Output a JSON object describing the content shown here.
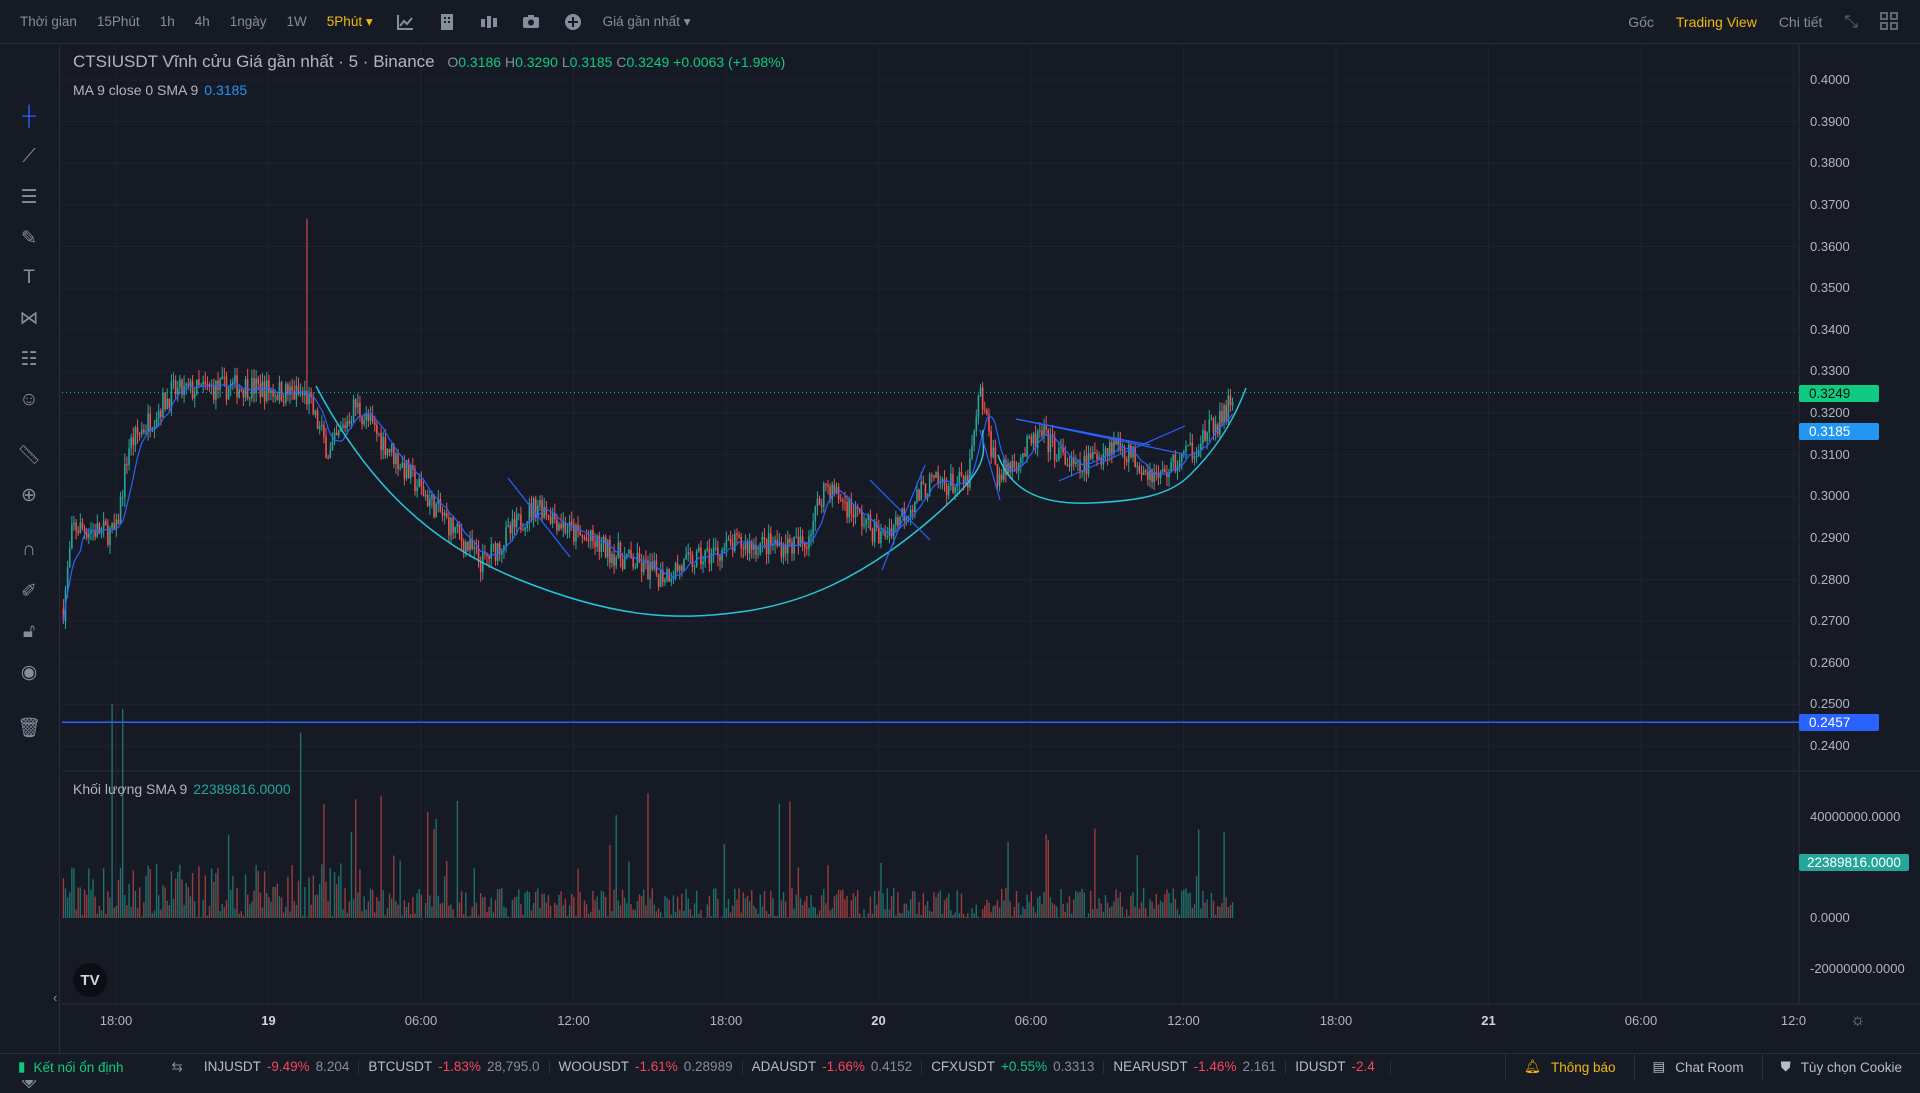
{
  "topbar": {
    "items": [
      "Thời gian",
      "15Phút",
      "1h",
      "4h",
      "1ngày",
      "1W"
    ],
    "active": "5Phút",
    "price_type": "Giá gần nhất",
    "right": [
      "Gốc",
      "Trading View",
      "Chi tiết"
    ]
  },
  "legend": {
    "title": "CTSIUSDT Vĩnh cửu Giá gần nhất · 5 · Binance",
    "o_label": "O",
    "o": "0.3186",
    "h_label": "H",
    "h": "0.3290",
    "l_label": "L",
    "l": "0.3185",
    "c_label": "C",
    "c": "0.3249",
    "change": "+0.0063 (+1.98%)"
  },
  "ma": {
    "label": "MA 9 close 0 SMA 9",
    "value": "0.3185"
  },
  "volume": {
    "label": "Khối lượng SMA 9",
    "value": "22389816.0000",
    "axis": [
      "40000000.0000",
      "0.0000",
      "-20000000.0000"
    ]
  },
  "price_axis": [
    "0.4000",
    "0.3900",
    "0.3800",
    "0.3700",
    "0.3600",
    "0.3500",
    "0.3400",
    "0.3300",
    "0.3200",
    "0.3100",
    "0.3000",
    "0.2900",
    "0.2800",
    "0.2700",
    "0.2600",
    "0.2500",
    "0.2400"
  ],
  "tags": {
    "last": "0.3249",
    "ma": "0.3185",
    "hline": "0.2457"
  },
  "time_axis": [
    "18:00",
    "19",
    "06:00",
    "12:00",
    "18:00",
    "20",
    "06:00",
    "12:00",
    "18:00",
    "21",
    "06:00",
    "12:0"
  ],
  "colors": {
    "up": "#26a69a",
    "down": "#ef5350",
    "ma": "#2962ff",
    "accent": "#f0b90b"
  },
  "chart_data": {
    "type": "candlestick",
    "x_unit": "hours since day 18 18:00",
    "path": [
      [
        -2.07,
        0.273
      ],
      [
        -1.7,
        0.2926
      ],
      [
        0,
        0.291
      ],
      [
        0.5,
        0.312
      ],
      [
        2.2,
        0.325
      ],
      [
        5.1,
        0.3265
      ],
      [
        7.5,
        0.324
      ],
      [
        8.4,
        0.31
      ],
      [
        9.4,
        0.322
      ],
      [
        12,
        0.3015
      ],
      [
        14.4,
        0.2838
      ],
      [
        16.6,
        0.2985
      ],
      [
        18,
        0.291
      ],
      [
        21.4,
        0.281
      ],
      [
        24.3,
        0.2883
      ],
      [
        27.1,
        0.2883
      ],
      [
        27.9,
        0.303
      ],
      [
        30.1,
        0.29
      ],
      [
        32,
        0.303
      ],
      [
        33.5,
        0.303
      ],
      [
        34,
        0.325
      ],
      [
        34.7,
        0.3044
      ],
      [
        36.4,
        0.3147
      ],
      [
        37.8,
        0.3059
      ],
      [
        39.3,
        0.3132
      ],
      [
        41,
        0.3044
      ],
      [
        42.4,
        0.3118
      ],
      [
        43.6,
        0.3191
      ],
      [
        44,
        0.3249
      ]
    ],
    "spike": {
      "hours": 7.5,
      "high": 0.3667
    },
    "hline": 0.2457,
    "last": 0.3249,
    "ylim": [
      0.24,
      0.4
    ]
  },
  "status": {
    "connection": "Kết nối ổn định",
    "tickers": [
      {
        "s": "INJUSDT",
        "c": "-9.49%",
        "p": "8.204"
      },
      {
        "s": "BTCUSDT",
        "c": "-1.83%",
        "p": "28,795.0"
      },
      {
        "s": "WOOUSDT",
        "c": "-1.61%",
        "p": "0.28989"
      },
      {
        "s": "ADAUSDT",
        "c": "-1.66%",
        "p": "0.4152"
      },
      {
        "s": "CFXUSDT",
        "c": "+0.55%",
        "p": "0.3313"
      },
      {
        "s": "NEARUSDT",
        "c": "-1.46%",
        "p": "2.161"
      },
      {
        "s": "IDUSDT",
        "c": "-2.4",
        "p": ""
      }
    ],
    "notify": "Thông báo",
    "chat": "Chat Room",
    "cookie": "Tùy chọn Cookie"
  }
}
